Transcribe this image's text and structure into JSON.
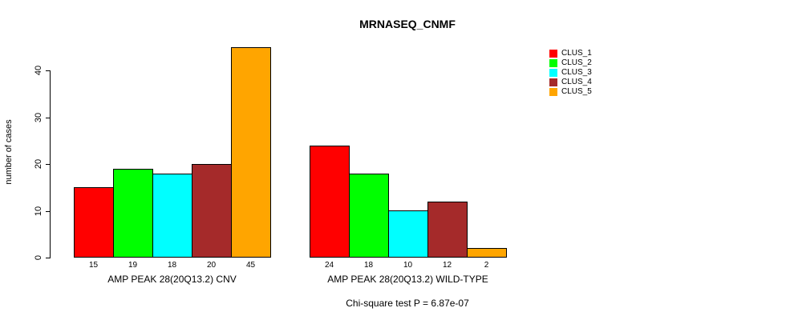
{
  "chart_data": {
    "type": "bar",
    "title": "MRNASEQ_CNMF",
    "ylabel": "number of cases",
    "xlabel": "",
    "ylim": [
      0,
      45
    ],
    "y_ticks": [
      0,
      10,
      20,
      30,
      40
    ],
    "grid": false,
    "legend_position": "right",
    "series": [
      {
        "name": "CLUS_1",
        "color": "#ff0000"
      },
      {
        "name": "CLUS_2",
        "color": "#00ff00"
      },
      {
        "name": "CLUS_3",
        "color": "#00ffff"
      },
      {
        "name": "CLUS_4",
        "color": "#a52a2a"
      },
      {
        "name": "CLUS_5",
        "color": "#ffa500"
      }
    ],
    "groups": [
      {
        "label": "AMP PEAK 28(20Q13.2) CNV",
        "values": [
          15,
          19,
          18,
          20,
          45
        ]
      },
      {
        "label": "AMP PEAK 28(20Q13.2) WILD-TYPE",
        "values": [
          24,
          18,
          10,
          12,
          2
        ]
      }
    ],
    "bar_value_labels_shown": true,
    "annotation": "Chi-square test P = 6.87e-07"
  }
}
